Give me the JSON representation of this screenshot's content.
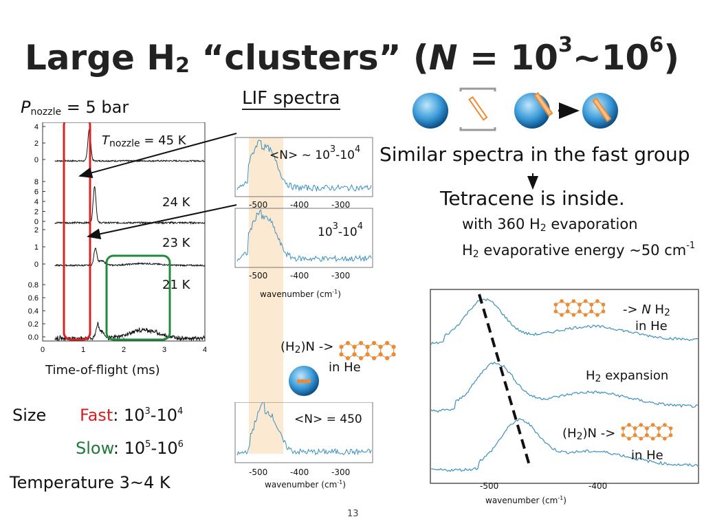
{
  "title": {
    "pre": "Large H",
    "sub2": "2",
    "mid": " “clusters” (",
    "n": "N",
    "eq": " = 10",
    "exp3": "3",
    "tilde": "~10",
    "exp6": "6",
    "close": ")"
  },
  "left": {
    "pressure_label": "P",
    "pressure_sub": "nozzle",
    "pressure_value": " = 5 bar",
    "temp_label": "T",
    "temp_sub": "nozzle",
    "temp_value": " = 45 K",
    "temps": [
      "24 K",
      "23 K",
      "21 K"
    ],
    "xlabel": "Time-of-flight (ms)"
  },
  "tof_chart": {
    "chart_data": {
      "type": "line",
      "xlabel": "Time-of-flight (ms)",
      "xlim": [
        0,
        4
      ],
      "xticks": [
        "0",
        "1",
        "2",
        "3",
        "4"
      ],
      "traces": [
        {
          "name": "45 K",
          "yticks": [
            "4",
            "2",
            "0"
          ],
          "peak_fast": 1.15,
          "ylim": [
            0,
            4
          ]
        },
        {
          "name": "24 K",
          "yticks": [
            "8",
            "6",
            "4",
            "2",
            "0"
          ],
          "peak_fast": 1.28,
          "ylim": [
            0,
            8
          ]
        },
        {
          "name": "23 K",
          "yticks": [
            "2",
            "1",
            "0"
          ],
          "peak_fast": 1.3,
          "ylim": [
            0,
            2
          ]
        },
        {
          "name": "21 K",
          "yticks": [
            "0.8",
            "0.6",
            "0.4",
            "0.2",
            "0.0"
          ],
          "peak_fast": 1.35,
          "peak_slow": 2.5,
          "ylim": [
            0,
            0.8
          ]
        }
      ]
    }
  },
  "lif": {
    "heading": "LIF spectra",
    "n1": "<N> ~ 10",
    "n1_e1": "3",
    "n1_mid": "-10",
    "n1_e2": "4",
    "n2": "10",
    "n2_e1": "3",
    "n2_mid": "-10",
    "n2_e2": "4",
    "n3": "<N> =  450",
    "xticks": [
      "-500",
      "-400",
      "-300"
    ],
    "xlabel": "wavenumber (cm",
    "xlabel_sup": "-1",
    "xlabel_end": ")"
  },
  "mid": {
    "h2n": "(H",
    "h2n_sub": "2",
    "h2n_n": ")N",
    "arrow": " ->",
    "inhe": "in He"
  },
  "right": {
    "similar": "Similar spectra in the fast group",
    "inside": "Tetracene is inside.",
    "evap1_pre": "with 360 H",
    "evap1_sub": "2",
    "evap1_post": " evaporation",
    "evap2_pre": "H",
    "evap2_sub": "2",
    "evap2_mid": " evaporative energy  ~50 cm",
    "evap2_sup": "-1",
    "label1_pre": "-> ",
    "label1_n": "N",
    "label1_h": " H",
    "label1_sub": "2",
    "label1_in": "in He",
    "label2_pre": "H",
    "label2_sub": "2",
    "label2_post": " expansion",
    "label3_pre": "(H",
    "label3_sub": "2",
    "label3_post": ")N",
    "label3_arrow": " ->",
    "label3_in": "in He",
    "xticks": [
      "-500",
      "-400"
    ],
    "xlabel": "wavenumber (cm",
    "xlabel_sup": "-1",
    "xlabel_end": ")"
  },
  "bottom": {
    "size": "Size",
    "fast_word": "Fast",
    "fast_val": ": 10",
    "fast_e1": "3",
    "fast_mid": "-10",
    "fast_e2": "4",
    "slow_word": "Slow",
    "slow_val": ": 10",
    "slow_e1": "5",
    "slow_mid": "-10",
    "slow_e2": "6",
    "temperature": "Temperature  3~4 K",
    "page": "13"
  },
  "colors": {
    "trace": "#3a8fbf",
    "fast": "#d42020",
    "slow": "#1f7a3a",
    "band": "#fbe9d2",
    "tetracene": "#f08a30"
  }
}
